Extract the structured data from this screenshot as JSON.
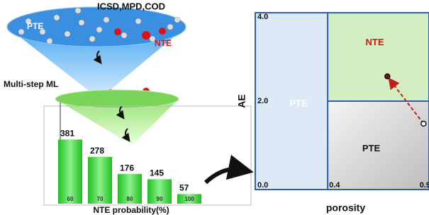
{
  "funnel": {
    "sources": "ICSD,MPD,COD",
    "pte_label": "PTE",
    "nte_label": "NTE",
    "step": "Multi-step ML"
  },
  "chart_data": [
    {
      "type": "bar",
      "categories": [
        "60",
        "70",
        "80",
        "90",
        "100"
      ],
      "values": [
        381,
        278,
        176,
        145,
        57
      ],
      "xlabel": "NTE probability(%)",
      "color": "#3fd93f",
      "ylim": [
        0,
        420
      ]
    },
    {
      "type": "region",
      "xlabel": "porosity",
      "ylabel": "AE",
      "xlim": [
        0,
        0.96
      ],
      "ylim": [
        0,
        4
      ],
      "xticks": [
        0.4,
        0.9
      ],
      "yticks": [
        {
          "value": 0,
          "label": "0.0"
        },
        {
          "value": 2,
          "label": "2.0"
        },
        {
          "value": 4,
          "label": "4.0"
        }
      ],
      "threshold_x": 0.4,
      "threshold_y": 2,
      "regions": [
        "PTE",
        "NTE",
        "PTE"
      ],
      "arrow_x": [
        0.93,
        0.73
      ],
      "arrow_y": [
        1.49,
        2.56
      ]
    }
  ]
}
